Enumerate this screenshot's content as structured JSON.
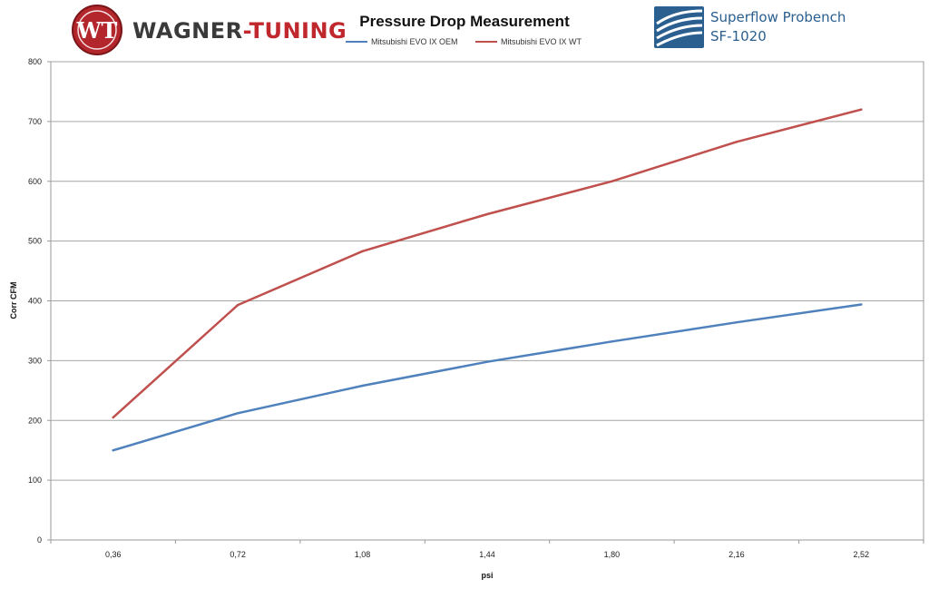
{
  "header": {
    "brand_left": {
      "monogram": "WT",
      "name_part1": "WAGNER",
      "name_sep": "-",
      "name_part2": "TUNING",
      "color_dark": "#3a3a3a",
      "color_accent": "#c0282d"
    },
    "brand_right": {
      "line1": "Superflow Probench",
      "line2": "SF-1020",
      "color": "#2a5f8f"
    }
  },
  "chart_data": {
    "type": "line",
    "title": "Pressure Drop Measurement",
    "xlabel": "psi",
    "ylabel": "Corr CFM",
    "categories": [
      "0,36",
      "0,72",
      "1,08",
      "1,44",
      "1,80",
      "2,16",
      "2,52"
    ],
    "ylim": [
      0,
      800
    ],
    "yticks": [
      0,
      100,
      200,
      300,
      400,
      500,
      600,
      700,
      800
    ],
    "grid": true,
    "legend_position": "top-center",
    "series": [
      {
        "name": "Mitsubishi EVO IX OEM",
        "color": "#4f81bd",
        "values": [
          150,
          212,
          258,
          298,
          332,
          364,
          394
        ]
      },
      {
        "name": "Mitsubishi EVO IX WT",
        "color": "#c0504d",
        "values": [
          205,
          393,
          483,
          545,
          600,
          666,
          720
        ]
      }
    ]
  }
}
